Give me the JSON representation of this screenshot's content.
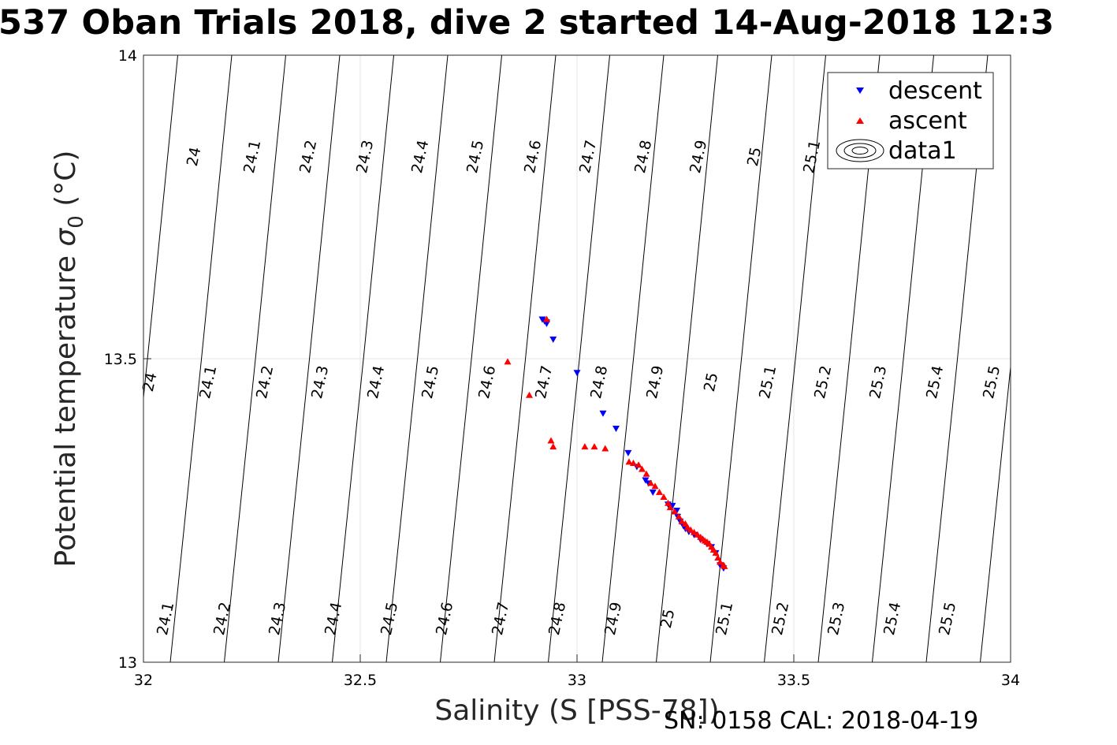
{
  "chart_data": {
    "type": "scatter",
    "title": "537 Oban Trials 2018, dive 2 started 14-Aug-2018 12:3",
    "xlabel": "Salinity (S [PSS-78])",
    "ylabel_main": "Potential temperature ",
    "ylabel_sym": "σ",
    "ylabel_sub": "0",
    "ylabel_unit": " (°C)",
    "xlim": [
      32,
      34
    ],
    "ylim": [
      13,
      14
    ],
    "xticks": [
      "32",
      "32.5",
      "33",
      "33.5",
      "34"
    ],
    "yticks": [
      "13",
      "13.5",
      "14"
    ],
    "grid": true,
    "legend_position": "top-right",
    "series": [
      {
        "name": "descent",
        "color": "#0000ff",
        "marker": "triangle-down",
        "points": [
          [
            32.92,
            13.565
          ],
          [
            32.925,
            13.562
          ],
          [
            32.93,
            13.56
          ],
          [
            32.93,
            13.558
          ],
          [
            32.945,
            13.532
          ],
          [
            33.0,
            13.477
          ],
          [
            33.06,
            13.41
          ],
          [
            33.09,
            13.385
          ],
          [
            33.118,
            13.345
          ],
          [
            33.138,
            13.322
          ],
          [
            33.158,
            13.3
          ],
          [
            33.165,
            13.295
          ],
          [
            33.175,
            13.28
          ],
          [
            33.21,
            13.26
          ],
          [
            33.22,
            13.258
          ],
          [
            33.23,
            13.25
          ],
          [
            33.232,
            13.24
          ],
          [
            33.238,
            13.232
          ],
          [
            33.245,
            13.225
          ],
          [
            33.25,
            13.22
          ],
          [
            33.258,
            13.215
          ],
          [
            33.27,
            13.21
          ],
          [
            33.285,
            13.202
          ],
          [
            33.3,
            13.195
          ],
          [
            33.31,
            13.19
          ],
          [
            33.32,
            13.18
          ],
          [
            33.33,
            13.16
          ],
          [
            33.338,
            13.155
          ]
        ]
      },
      {
        "name": "ascent",
        "color": "#ff0000",
        "marker": "triangle-up",
        "points": [
          [
            32.84,
            13.495
          ],
          [
            32.93,
            13.565
          ],
          [
            32.89,
            13.44
          ],
          [
            32.94,
            13.365
          ],
          [
            32.945,
            13.355
          ],
          [
            33.018,
            13.355
          ],
          [
            33.04,
            13.355
          ],
          [
            33.065,
            13.352
          ],
          [
            33.12,
            13.33
          ],
          [
            33.13,
            13.328
          ],
          [
            33.142,
            13.325
          ],
          [
            33.15,
            13.318
          ],
          [
            33.16,
            13.31
          ],
          [
            33.17,
            13.295
          ],
          [
            33.18,
            13.29
          ],
          [
            33.19,
            13.28
          ],
          [
            33.2,
            13.272
          ],
          [
            33.21,
            13.262
          ],
          [
            33.215,
            13.255
          ],
          [
            33.225,
            13.248
          ],
          [
            33.235,
            13.24
          ],
          [
            33.242,
            13.232
          ],
          [
            33.25,
            13.228
          ],
          [
            33.255,
            13.222
          ],
          [
            33.262,
            13.218
          ],
          [
            33.27,
            13.214
          ],
          [
            33.278,
            13.21
          ],
          [
            33.285,
            13.206
          ],
          [
            33.29,
            13.203
          ],
          [
            33.295,
            13.2
          ],
          [
            33.3,
            13.198
          ],
          [
            33.305,
            13.195
          ],
          [
            33.31,
            13.19
          ],
          [
            33.315,
            13.185
          ],
          [
            33.32,
            13.18
          ],
          [
            33.325,
            13.172
          ],
          [
            33.33,
            13.165
          ],
          [
            33.338,
            13.16
          ],
          [
            33.34,
            13.158
          ]
        ]
      },
      {
        "name": "data1",
        "color": "#000000",
        "marker": "contour"
      }
    ],
    "contours": {
      "top_labels": [
        "24",
        "24.1",
        "24.2",
        "24.3",
        "24.4",
        "24.5",
        "24.6",
        "24.7",
        "24.8",
        "24.9",
        "25",
        "25.1"
      ],
      "mid_labels": [
        "24",
        "24.1",
        "24.2",
        "24.3",
        "24.4",
        "24.5",
        "24.6",
        "24.7",
        "24.8",
        "24.9",
        "25",
        "25.1",
        "25.2",
        "25.3",
        "25.4",
        "25.5"
      ],
      "bottom_labels": [
        "24.1",
        "24.2",
        "24.3",
        "24.4",
        "24.5",
        "24.6",
        "24.7",
        "24.8",
        "24.9",
        "25",
        "25.1",
        "25.2",
        "25.3",
        "25.4",
        "25.5"
      ]
    },
    "footer": "SN: 0158  CAL: 2018-04-19"
  }
}
